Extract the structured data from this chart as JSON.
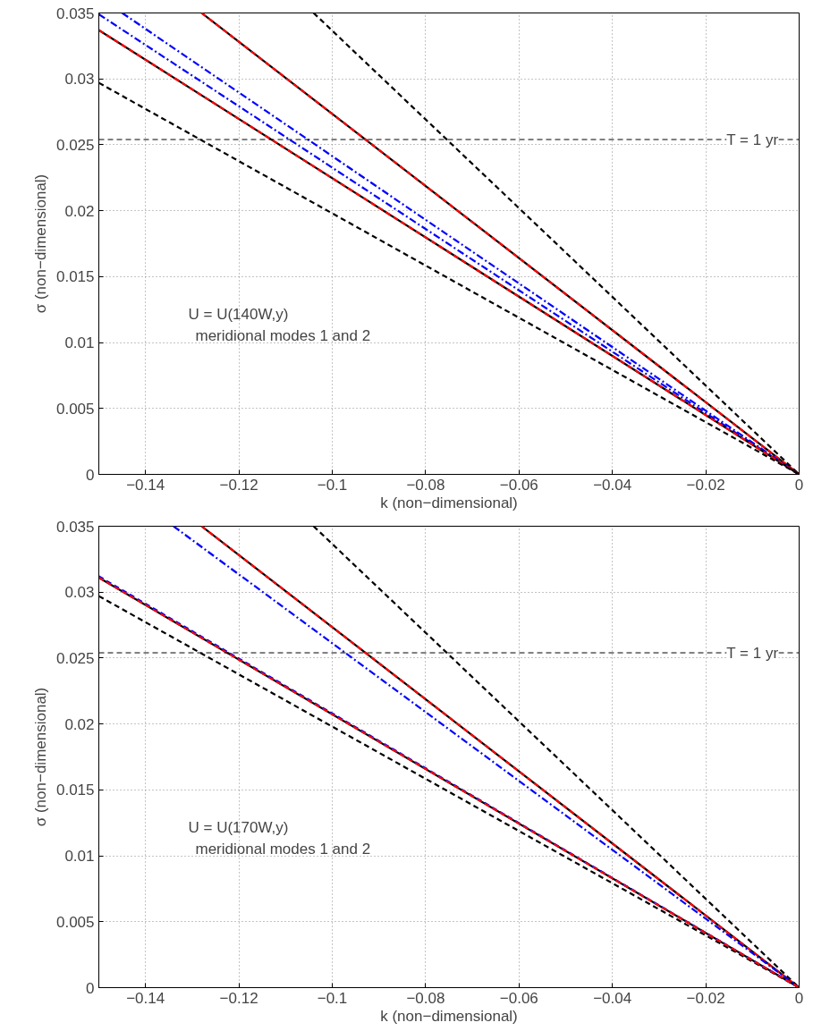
{
  "chart_data": [
    {
      "type": "line",
      "xlabel": "k (non−dimensional)",
      "ylabel": "σ (non−dimensional)",
      "xlim": [
        -0.15,
        0
      ],
      "ylim": [
        0,
        0.035
      ],
      "xticks": [
        {
          "value": -0.14,
          "label": "−0.14"
        },
        {
          "value": -0.12,
          "label": "−0.12"
        },
        {
          "value": -0.1,
          "label": "−0.1"
        },
        {
          "value": -0.08,
          "label": "−0.08"
        },
        {
          "value": -0.06,
          "label": "−0.06"
        },
        {
          "value": -0.04,
          "label": "−0.04"
        },
        {
          "value": -0.02,
          "label": "−0.02"
        },
        0
      ],
      "yticks": [
        0,
        0.005,
        0.01,
        0.015,
        0.02,
        0.025,
        0.03,
        0.035
      ],
      "grid": true,
      "series": [
        {
          "color": "#000000",
          "line_style": "dashed",
          "x": [
            -0.104,
            0
          ],
          "values": [
            0.035,
            0
          ]
        },
        {
          "color": "#000000",
          "line_style": "solid",
          "x": [
            -0.128,
            0
          ],
          "values": [
            0.035,
            0
          ]
        },
        {
          "color": "#ff0000",
          "line_style": "dashed",
          "x": [
            -0.128,
            0
          ],
          "values": [
            0.035,
            0
          ]
        },
        {
          "color": "#0000ff",
          "line_style": "dashdot",
          "x": [
            -0.145,
            0
          ],
          "values": [
            0.035,
            0
          ]
        },
        {
          "color": "#0000ff",
          "line_style": "dashdot",
          "x": [
            -0.15,
            0
          ],
          "values": [
            0.0349,
            0
          ]
        },
        {
          "color": "#000000",
          "line_style": "solid",
          "x": [
            -0.15,
            0
          ],
          "values": [
            0.0337,
            0
          ]
        },
        {
          "color": "#ff0000",
          "line_style": "dashed",
          "x": [
            -0.15,
            0
          ],
          "values": [
            0.0337,
            0
          ]
        },
        {
          "color": "#000000",
          "line_style": "dashed",
          "x": [
            -0.15,
            0
          ],
          "values": [
            0.0297,
            0
          ]
        }
      ],
      "ref_lines": [
        {
          "axis": "y",
          "value": 0.0254,
          "color": "#000000",
          "line_style": "dashed"
        }
      ],
      "annotations": [
        "U = U(140W,y)",
        "meridional modes 1 and 2",
        {
          "text": "T = 1 yr",
          "x": -0.01,
          "y": 0.0254
        }
      ]
    },
    {
      "type": "line",
      "xlabel": "k (non−dimensional)",
      "ylabel": "σ (non−dimensional)",
      "xlim": [
        -0.15,
        0
      ],
      "ylim": [
        0,
        0.035
      ],
      "xticks": [
        {
          "value": -0.14,
          "label": "−0.14"
        },
        {
          "value": -0.12,
          "label": "−0.12"
        },
        {
          "value": -0.1,
          "label": "−0.1"
        },
        {
          "value": -0.08,
          "label": "−0.08"
        },
        {
          "value": -0.06,
          "label": "−0.06"
        },
        {
          "value": -0.04,
          "label": "−0.04"
        },
        {
          "value": -0.02,
          "label": "−0.02"
        },
        0
      ],
      "yticks": [
        0,
        0.005,
        0.01,
        0.015,
        0.02,
        0.025,
        0.03,
        0.035
      ],
      "grid": true,
      "series": [
        {
          "color": "#000000",
          "line_style": "dashed",
          "x": [
            -0.104,
            0
          ],
          "values": [
            0.035,
            0
          ]
        },
        {
          "color": "#000000",
          "line_style": "solid",
          "x": [
            -0.128,
            0
          ],
          "values": [
            0.035,
            0
          ]
        },
        {
          "color": "#ff0000",
          "line_style": "dashed",
          "x": [
            -0.128,
            0
          ],
          "values": [
            0.035,
            0
          ]
        },
        {
          "color": "#0000ff",
          "line_style": "dashdot",
          "x": [
            -0.134,
            0
          ],
          "values": [
            0.035,
            0
          ]
        },
        {
          "color": "#000000",
          "line_style": "dashed",
          "x": [
            -0.15,
            0
          ],
          "values": [
            0.0297,
            0
          ]
        },
        {
          "color": "#000000",
          "line_style": "solid",
          "x": [
            -0.15,
            0
          ],
          "values": [
            0.0311,
            0
          ]
        },
        {
          "color": "#0000ff",
          "line_style": "dashed",
          "x": [
            -0.15,
            0
          ],
          "values": [
            0.0312,
            0
          ]
        },
        {
          "color": "#ff0000",
          "line_style": "dashed",
          "x": [
            -0.15,
            0
          ],
          "values": [
            0.0311,
            0
          ]
        }
      ],
      "ref_lines": [
        {
          "axis": "y",
          "value": 0.0254,
          "color": "#000000",
          "line_style": "dashed"
        }
      ],
      "annotations": [
        "U = U(170W,y)",
        "meridional modes 1 and 2",
        {
          "text": "T = 1 yr",
          "x": -0.01,
          "y": 0.0254
        }
      ]
    }
  ]
}
